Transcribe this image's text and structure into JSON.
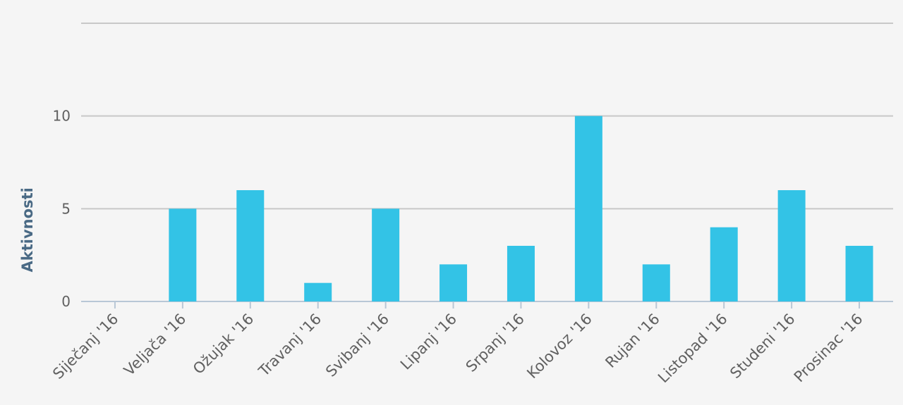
{
  "chart_data": {
    "type": "bar",
    "title": "",
    "xlabel": "",
    "ylabel": "Aktivnosti",
    "categories": [
      "Siječanj '16",
      "Veljača '16",
      "Ožujak '16",
      "Travanj '16",
      "Svibanj '16",
      "Lipanj '16",
      "Srpanj '16",
      "Kolovoz '16",
      "Rujan '16",
      "Listopad '16",
      "Studeni '16",
      "Prosinac '16"
    ],
    "values": [
      0,
      5,
      6,
      1,
      5,
      2,
      3,
      10,
      2,
      4,
      6,
      3
    ],
    "ylim": [
      0,
      15
    ],
    "yticks": [
      "0",
      "5",
      "10"
    ],
    "grid": true,
    "legend": "none",
    "bar_color": "#33c3e6"
  }
}
